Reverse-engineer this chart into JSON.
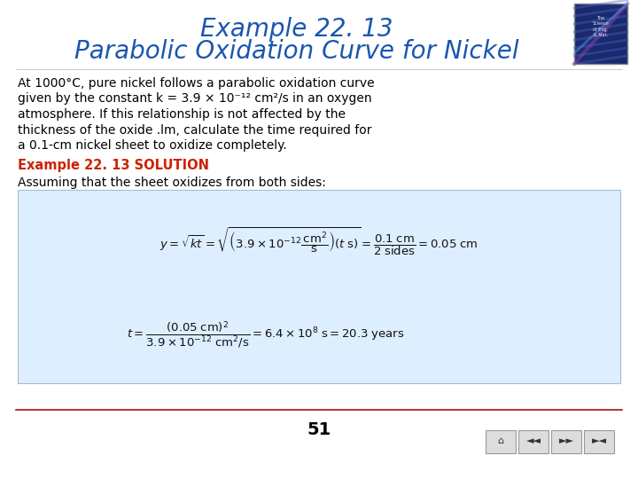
{
  "title_line1": "Example 22. 13",
  "title_line2": "Parabolic Oxidation Curve for Nickel",
  "title_color": "#1a56b0",
  "bg_color": "#ffffff",
  "body_lines": [
    "At 1000°C, pure nickel follows a parabolic oxidation curve",
    "given by the constant k = 3.9 × 10⁻¹² cm²/s in an oxygen",
    "atmosphere. If this relationship is not affected by the",
    "thickness of the oxide .lm, calculate the time required for",
    "a 0.1-cm nickel sheet to oxidize completely."
  ],
  "solution_label": "Example 22. 13 SOLUTION",
  "solution_color": "#cc2200",
  "assuming_text": "Assuming that the sheet oxidizes from both sides:",
  "formula_box_color": "#ddeeff",
  "formula_box_edge": "#aabbcc",
  "page_number": "51",
  "footer_line_color": "#aa1111",
  "text_color": "#000000",
  "nav_bg": "#dddddd",
  "nav_edge": "#999999"
}
